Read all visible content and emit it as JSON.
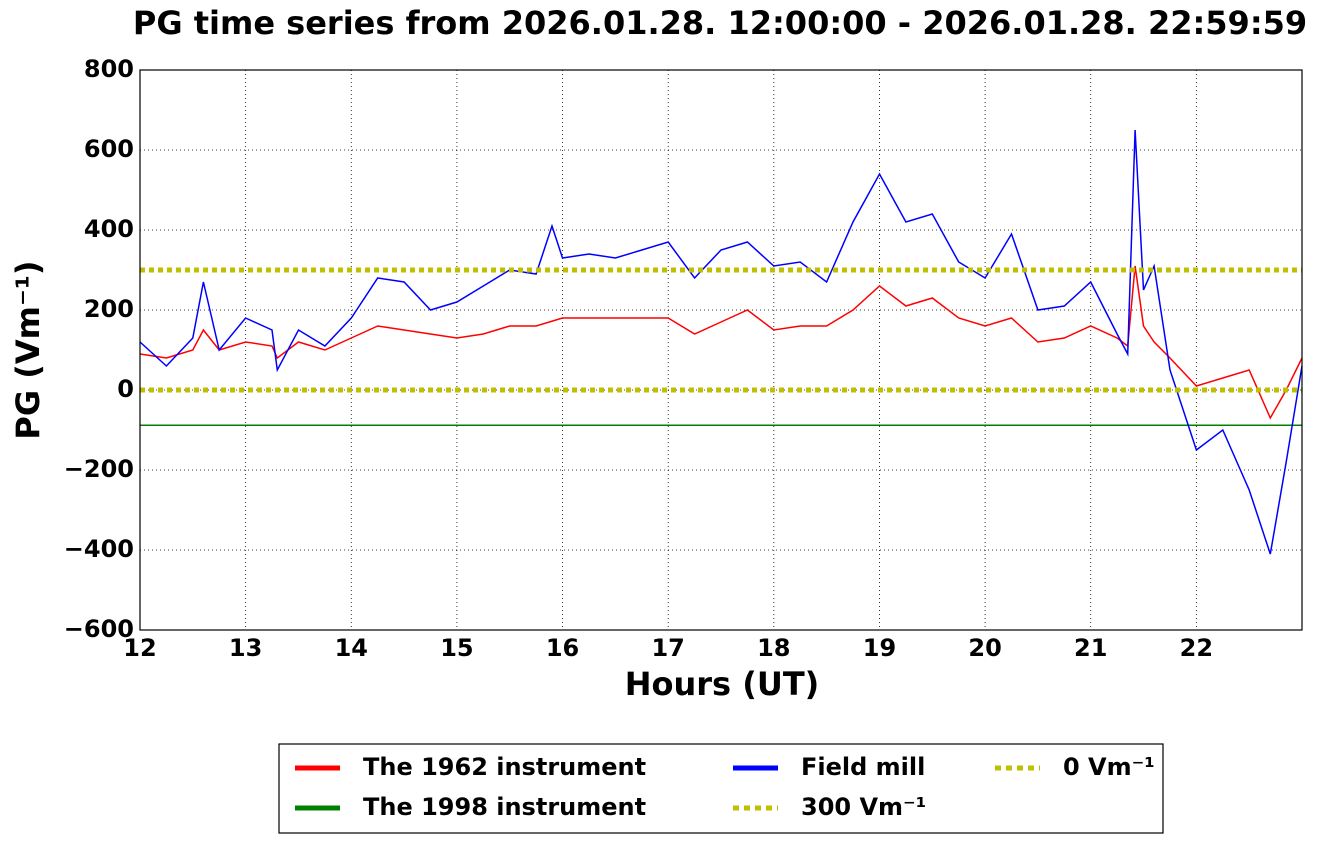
{
  "chart_data": {
    "type": "line",
    "title": "PG time series from 2026.01.28. 12:00:00 - 2026.01.28. 22:59:59",
    "xlabel": "Hours (UT)",
    "ylabel": "PG (Vm⁻¹)",
    "xlim": [
      12,
      23
    ],
    "xticks": [
      12,
      13,
      14,
      15,
      16,
      17,
      18,
      19,
      20,
      21,
      22
    ],
    "ylim": [
      -600,
      800
    ],
    "yticks": [
      {
        "value": -600,
        "label": "−600"
      },
      {
        "value": -400,
        "label": "−400"
      },
      {
        "value": -200,
        "label": "−200"
      },
      0,
      200,
      400,
      600,
      800
    ],
    "grid": true,
    "legend": "bottom",
    "series": [
      {
        "name": "The 1962 instrument",
        "color": "#ff0000",
        "x": [
          12.0,
          12.25,
          12.5,
          12.6,
          12.75,
          13.0,
          13.25,
          13.3,
          13.5,
          13.75,
          14.0,
          14.25,
          14.5,
          14.75,
          15.0,
          15.25,
          15.5,
          15.75,
          16.0,
          16.25,
          16.5,
          16.75,
          17.0,
          17.25,
          17.5,
          17.75,
          18.0,
          18.25,
          18.5,
          18.75,
          19.0,
          19.25,
          19.5,
          19.75,
          20.0,
          20.25,
          20.5,
          20.75,
          21.0,
          21.25,
          21.35,
          21.42,
          21.5,
          21.6,
          21.75,
          22.0,
          22.25,
          22.5,
          22.7,
          22.85,
          23.0
        ],
        "values": [
          90,
          80,
          100,
          150,
          100,
          120,
          110,
          80,
          120,
          100,
          130,
          160,
          150,
          140,
          130,
          140,
          160,
          160,
          180,
          180,
          180,
          180,
          180,
          140,
          170,
          200,
          150,
          160,
          160,
          200,
          260,
          210,
          230,
          180,
          160,
          180,
          120,
          130,
          160,
          130,
          110,
          310,
          160,
          120,
          80,
          10,
          30,
          50,
          -70,
          0,
          80
        ]
      },
      {
        "name": "The 1998 instrument",
        "color": "#008000",
        "x": [
          12,
          23
        ],
        "values": [
          -88,
          -88
        ]
      },
      {
        "name": "Field mill",
        "color": "#0000ff",
        "x": [
          12.0,
          12.25,
          12.5,
          12.6,
          12.75,
          13.0,
          13.25,
          13.3,
          13.5,
          13.75,
          14.0,
          14.25,
          14.5,
          14.75,
          15.0,
          15.25,
          15.5,
          15.75,
          15.9,
          16.0,
          16.25,
          16.5,
          16.75,
          17.0,
          17.25,
          17.5,
          17.75,
          18.0,
          18.25,
          18.5,
          18.75,
          19.0,
          19.25,
          19.5,
          19.75,
          20.0,
          20.25,
          20.5,
          20.75,
          21.0,
          21.25,
          21.35,
          21.42,
          21.5,
          21.6,
          21.75,
          22.0,
          22.25,
          22.5,
          22.7,
          22.85,
          23.0
        ],
        "values": [
          120,
          60,
          130,
          270,
          100,
          180,
          150,
          50,
          150,
          110,
          180,
          280,
          270,
          200,
          220,
          260,
          300,
          290,
          410,
          330,
          340,
          330,
          350,
          370,
          280,
          350,
          370,
          310,
          320,
          270,
          420,
          540,
          420,
          440,
          320,
          280,
          390,
          200,
          210,
          270,
          140,
          90,
          650,
          250,
          310,
          50,
          -150,
          -100,
          -250,
          -410,
          -180,
          60
        ]
      },
      {
        "name": "300 Vm⁻¹",
        "color": "#bfbf00",
        "dashed": true,
        "x": [
          12,
          23
        ],
        "values": [
          300,
          300
        ]
      },
      {
        "name": "0 Vm⁻¹",
        "color": "#bfbf00",
        "dashed": true,
        "x": [
          12,
          23
        ],
        "values": [
          0,
          0
        ]
      }
    ]
  }
}
